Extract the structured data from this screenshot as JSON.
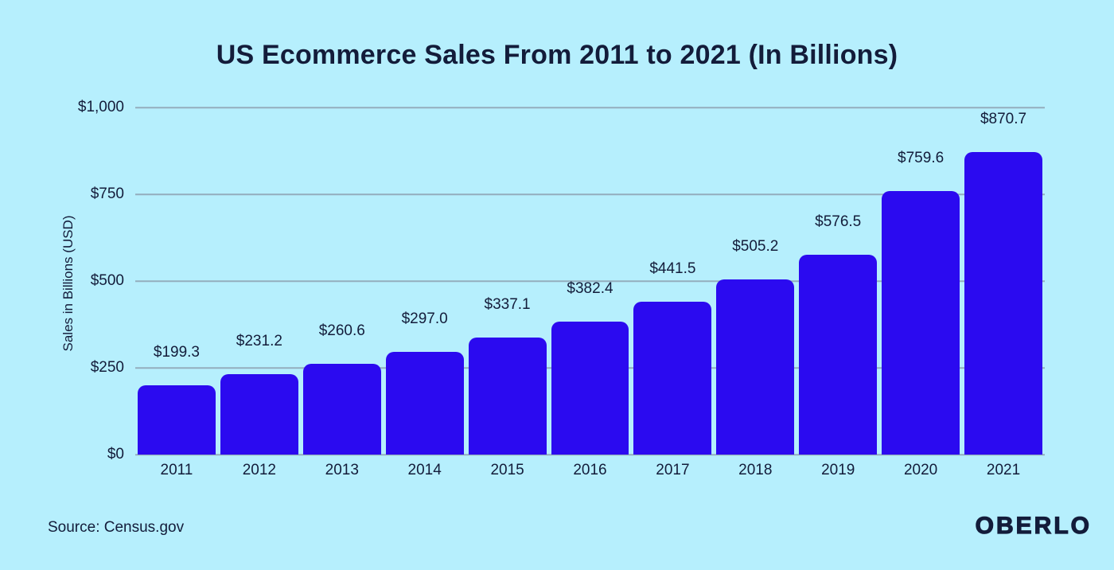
{
  "page": {
    "title": "US Ecommerce Sales From 2011 to 2021 (In Billions)",
    "source": "Source: Census.gov",
    "brand_logo": "OBERLO"
  },
  "colors": {
    "background": "#b6effd",
    "bar": "#2b0af0",
    "gridline": "#93adbd",
    "text": "#131c3a"
  },
  "chart_data": {
    "type": "bar",
    "title": "US Ecommerce Sales From 2011 to 2021 (In Billions)",
    "categories": [
      "2011",
      "2012",
      "2013",
      "2014",
      "2015",
      "2016",
      "2017",
      "2018",
      "2019",
      "2020",
      "2021"
    ],
    "values": [
      199.3,
      231.2,
      260.6,
      297.0,
      337.1,
      382.4,
      441.5,
      505.2,
      576.5,
      759.6,
      870.7
    ],
    "bar_labels": [
      "$199.3",
      "$231.2",
      "$260.6",
      "$297.0",
      "$337.1",
      "$382.4",
      "$441.5",
      "$505.2",
      "$576.5",
      "$759.6",
      "$870.7"
    ],
    "xlabel": "",
    "ylabel": "Sales in Billions (USD)",
    "ylim": [
      0,
      1000
    ],
    "yticks": [
      {
        "value": 0,
        "label": "$0"
      },
      {
        "value": 250,
        "label": "$250"
      },
      {
        "value": 500,
        "label": "$500"
      },
      {
        "value": 750,
        "label": "$750"
      },
      {
        "value": 1000,
        "label": "$1,000"
      }
    ],
    "grid": true,
    "legend": false,
    "bar_color": "#2b0af0"
  }
}
